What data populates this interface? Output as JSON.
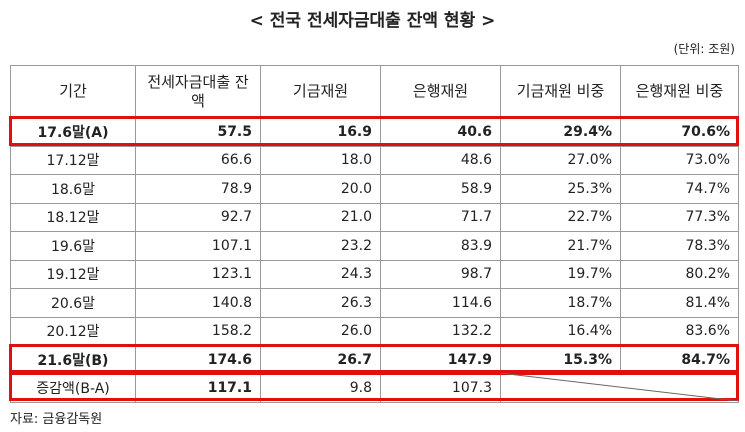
{
  "header": {
    "title": "< 전국 전세자금대출 잔액 현황 >",
    "unit": "(단위: 조원)"
  },
  "table": {
    "columns": [
      "기간",
      "전세자금대출 잔액",
      "기금재원",
      "은행재원",
      "기금재원 비중",
      "은행재원 비중"
    ],
    "rows": [
      [
        "17.6말(A)",
        "57.5",
        "16.9",
        "40.6",
        "29.4%",
        "70.6%"
      ],
      [
        "17.12말",
        "66.6",
        "18.0",
        "48.6",
        "27.0%",
        "73.0%"
      ],
      [
        "18.6말",
        "78.9",
        "20.0",
        "58.9",
        "25.3%",
        "74.7%"
      ],
      [
        "18.12말",
        "92.7",
        "21.0",
        "71.7",
        "22.7%",
        "77.3%"
      ],
      [
        "19.6말",
        "107.1",
        "23.2",
        "83.9",
        "21.7%",
        "78.3%"
      ],
      [
        "19.12말",
        "123.1",
        "24.3",
        "98.7",
        "19.7%",
        "80.2%"
      ],
      [
        "20.6말",
        "140.8",
        "26.3",
        "114.6",
        "18.7%",
        "81.4%"
      ],
      [
        "20.12말",
        "158.2",
        "26.0",
        "132.2",
        "16.4%",
        "83.6%"
      ],
      [
        "21.6말(B)",
        "174.6",
        "26.7",
        "147.9",
        "15.3%",
        "84.7%"
      ],
      [
        "증감액(B-A)",
        "117.1",
        "9.8",
        "107.3"
      ]
    ]
  },
  "footer": {
    "source": "자료: 금융감독원"
  }
}
